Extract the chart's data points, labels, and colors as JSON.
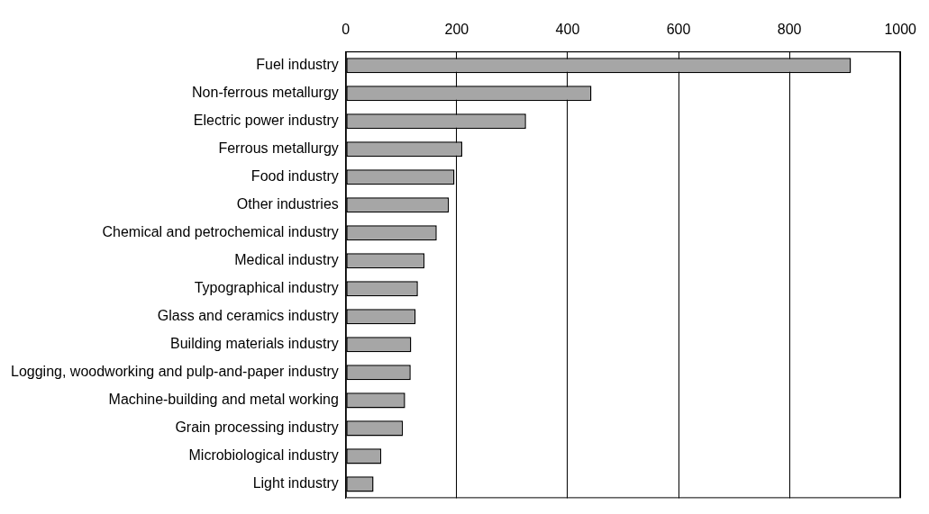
{
  "chart_data": {
    "type": "bar",
    "orientation": "horizontal",
    "categories": [
      "Fuel industry",
      "Non-ferrous metallurgy",
      "Electric power industry",
      "Ferrous metallurgy",
      "Food industry",
      "Other industries",
      "Chemical and petrochemical industry",
      "Medical industry",
      "Typographical industry",
      "Glass and ceramics industry",
      "Building materials industry",
      "Logging, woodworking and pulp-and-paper industry",
      "Machine-building and metal working",
      "Grain processing industry",
      "Microbiological industry",
      "Light industry"
    ],
    "values": [
      911,
      443,
      325,
      210,
      196,
      186,
      164,
      142,
      130,
      126,
      118,
      117,
      107,
      103,
      64,
      50
    ],
    "color": "#a6a6a6",
    "xlim": [
      0,
      1000
    ],
    "xticks": [
      0,
      200,
      400,
      600,
      800,
      1000
    ],
    "grid": "x",
    "legend": false
  }
}
